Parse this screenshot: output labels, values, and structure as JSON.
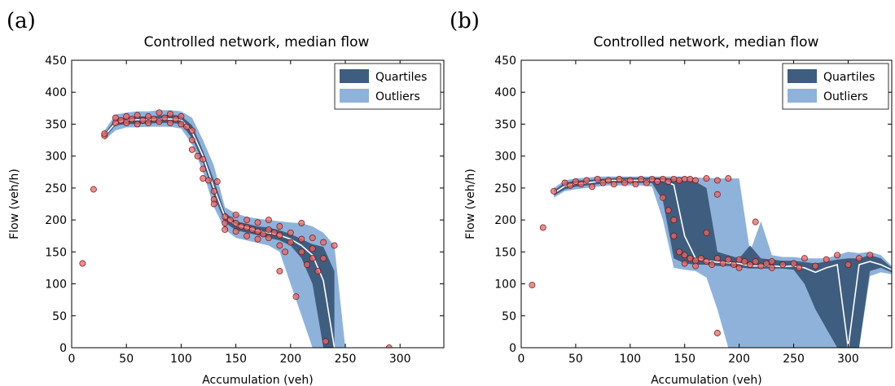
{
  "chart_data": [
    {
      "type": "scatter",
      "panel_label": "(a)",
      "title": "Controlled network, median flow",
      "xlabel": "Accumulation (veh)",
      "ylabel": "Flow (veh/h)",
      "xlim": [
        0,
        340
      ],
      "ylim": [
        0,
        450
      ],
      "xticks": [
        0,
        50,
        100,
        150,
        200,
        250,
        300
      ],
      "yticks": [
        0,
        50,
        100,
        150,
        200,
        250,
        300,
        350,
        400,
        450
      ],
      "legend": {
        "position": "top-right",
        "items": [
          "Quartiles",
          "Outliers"
        ]
      },
      "colors": {
        "quartiles": "#3f5d7f",
        "outliers": "#8fb2da",
        "median": "#ffffff",
        "points": "#e06a6a",
        "point_edge": "#7a1010"
      },
      "median": {
        "x": [
          10,
          20,
          30,
          40,
          50,
          60,
          70,
          80,
          90,
          100,
          110,
          120,
          130,
          140,
          150,
          160,
          170,
          180,
          190,
          200,
          210,
          220,
          230,
          240
        ],
        "y": [
          130,
          248,
          332,
          352,
          356,
          357,
          357,
          358,
          358,
          357,
          338,
          300,
          250,
          205,
          192,
          188,
          183,
          180,
          176,
          170,
          160,
          145,
          105,
          0
        ]
      },
      "quartiles": {
        "x": [
          30,
          40,
          50,
          60,
          70,
          80,
          90,
          100,
          110,
          120,
          130,
          140,
          150,
          160,
          170,
          180,
          190,
          200,
          210,
          220,
          230,
          240
        ],
        "lower": [
          328,
          348,
          350,
          350,
          351,
          352,
          352,
          350,
          328,
          290,
          238,
          196,
          184,
          180,
          176,
          172,
          168,
          160,
          140,
          100,
          0,
          0
        ],
        "upper": [
          335,
          358,
          360,
          362,
          362,
          363,
          365,
          363,
          348,
          308,
          262,
          212,
          198,
          194,
          190,
          188,
          184,
          178,
          170,
          162,
          158,
          120
        ]
      },
      "outliers": {
        "x": [
          30,
          40,
          50,
          60,
          70,
          80,
          90,
          100,
          110,
          120,
          130,
          140,
          150,
          160,
          170,
          180,
          190,
          200,
          210,
          220,
          230,
          240,
          250
        ],
        "lower": [
          325,
          340,
          345,
          345,
          346,
          346,
          346,
          343,
          318,
          275,
          220,
          185,
          172,
          168,
          164,
          160,
          150,
          100,
          50,
          0,
          0,
          0,
          0
        ],
        "upper": [
          340,
          365,
          368,
          370,
          370,
          372,
          372,
          370,
          360,
          325,
          285,
          220,
          210,
          205,
          202,
          200,
          198,
          196,
          195,
          190,
          180,
          160,
          0
        ]
      },
      "points": [
        {
          "x": 10,
          "y": 132
        },
        {
          "x": 20,
          "y": 248
        },
        {
          "x": 30,
          "y": 332
        },
        {
          "x": 30,
          "y": 335
        },
        {
          "x": 40,
          "y": 352
        },
        {
          "x": 40,
          "y": 360
        },
        {
          "x": 45,
          "y": 356
        },
        {
          "x": 50,
          "y": 352
        },
        {
          "x": 50,
          "y": 362
        },
        {
          "x": 55,
          "y": 358
        },
        {
          "x": 60,
          "y": 350
        },
        {
          "x": 60,
          "y": 364
        },
        {
          "x": 65,
          "y": 356
        },
        {
          "x": 70,
          "y": 352
        },
        {
          "x": 70,
          "y": 362
        },
        {
          "x": 75,
          "y": 358
        },
        {
          "x": 80,
          "y": 354
        },
        {
          "x": 80,
          "y": 368
        },
        {
          "x": 85,
          "y": 360
        },
        {
          "x": 90,
          "y": 352
        },
        {
          "x": 90,
          "y": 366
        },
        {
          "x": 95,
          "y": 358
        },
        {
          "x": 100,
          "y": 350
        },
        {
          "x": 100,
          "y": 362
        },
        {
          "x": 105,
          "y": 346
        },
        {
          "x": 110,
          "y": 340
        },
        {
          "x": 110,
          "y": 325
        },
        {
          "x": 110,
          "y": 310
        },
        {
          "x": 115,
          "y": 300
        },
        {
          "x": 120,
          "y": 295
        },
        {
          "x": 120,
          "y": 280
        },
        {
          "x": 120,
          "y": 265
        },
        {
          "x": 125,
          "y": 262
        },
        {
          "x": 130,
          "y": 245
        },
        {
          "x": 130,
          "y": 232
        },
        {
          "x": 130,
          "y": 225
        },
        {
          "x": 133,
          "y": 260
        },
        {
          "x": 140,
          "y": 205
        },
        {
          "x": 140,
          "y": 195
        },
        {
          "x": 140,
          "y": 185
        },
        {
          "x": 145,
          "y": 200
        },
        {
          "x": 150,
          "y": 208
        },
        {
          "x": 150,
          "y": 195
        },
        {
          "x": 150,
          "y": 182
        },
        {
          "x": 155,
          "y": 190
        },
        {
          "x": 160,
          "y": 200
        },
        {
          "x": 160,
          "y": 188
        },
        {
          "x": 160,
          "y": 175
        },
        {
          "x": 165,
          "y": 185
        },
        {
          "x": 170,
          "y": 196
        },
        {
          "x": 170,
          "y": 182
        },
        {
          "x": 170,
          "y": 170
        },
        {
          "x": 175,
          "y": 178
        },
        {
          "x": 180,
          "y": 200
        },
        {
          "x": 180,
          "y": 185
        },
        {
          "x": 180,
          "y": 172
        },
        {
          "x": 185,
          "y": 180
        },
        {
          "x": 190,
          "y": 190
        },
        {
          "x": 190,
          "y": 176
        },
        {
          "x": 190,
          "y": 160
        },
        {
          "x": 195,
          "y": 150
        },
        {
          "x": 190,
          "y": 120
        },
        {
          "x": 200,
          "y": 180
        },
        {
          "x": 200,
          "y": 165
        },
        {
          "x": 205,
          "y": 80
        },
        {
          "x": 210,
          "y": 195
        },
        {
          "x": 210,
          "y": 170
        },
        {
          "x": 210,
          "y": 150
        },
        {
          "x": 215,
          "y": 130
        },
        {
          "x": 220,
          "y": 172
        },
        {
          "x": 220,
          "y": 155
        },
        {
          "x": 220,
          "y": 140
        },
        {
          "x": 225,
          "y": 120
        },
        {
          "x": 230,
          "y": 165
        },
        {
          "x": 230,
          "y": 140
        },
        {
          "x": 232,
          "y": 10
        },
        {
          "x": 240,
          "y": 160
        },
        {
          "x": 290,
          "y": 0
        }
      ]
    },
    {
      "type": "scatter",
      "panel_label": "(b)",
      "title": "Controlled network, median flow",
      "xlabel": "Accumulation (veh)",
      "ylabel": "Flow (veh/h)",
      "xlim": [
        0,
        340
      ],
      "ylim": [
        0,
        450
      ],
      "xticks": [
        0,
        50,
        100,
        150,
        200,
        250,
        300
      ],
      "yticks": [
        0,
        50,
        100,
        150,
        200,
        250,
        300,
        350,
        400,
        450
      ],
      "legend": {
        "position": "top-right",
        "items": [
          "Quartiles",
          "Outliers"
        ]
      },
      "colors": {
        "quartiles": "#3f5d7f",
        "outliers": "#8fb2da",
        "median": "#ffffff",
        "points": "#e06a6a",
        "point_edge": "#7a1010"
      },
      "median": {
        "x": [
          10,
          20,
          30,
          40,
          50,
          60,
          70,
          80,
          90,
          100,
          110,
          120,
          130,
          140,
          150,
          160,
          170,
          180,
          190,
          200,
          210,
          220,
          230,
          240,
          250,
          260,
          270,
          280,
          290,
          300,
          310,
          320,
          330,
          340
        ],
        "y": [
          98,
          188,
          242,
          253,
          257,
          258,
          260,
          262,
          262,
          262,
          262,
          262,
          262,
          255,
          175,
          140,
          136,
          134,
          133,
          132,
          128,
          128,
          128,
          127,
          128,
          125,
          118,
          125,
          130,
          0,
          130,
          135,
          130,
          122
        ]
      },
      "quartiles": {
        "x": [
          30,
          40,
          50,
          60,
          70,
          80,
          90,
          100,
          110,
          120,
          130,
          140,
          150,
          160,
          170,
          180,
          190,
          200,
          210,
          220,
          230,
          240,
          250,
          260,
          270,
          280,
          290,
          300,
          310,
          320,
          330,
          340
        ],
        "lower": [
          238,
          248,
          252,
          254,
          256,
          258,
          258,
          258,
          258,
          258,
          230,
          140,
          132,
          130,
          130,
          128,
          128,
          126,
          124,
          124,
          124,
          124,
          122,
          100,
          60,
          30,
          0,
          0,
          0,
          120,
          125,
          118
        ],
        "upper": [
          246,
          258,
          262,
          262,
          264,
          265,
          266,
          266,
          266,
          266,
          266,
          264,
          262,
          260,
          250,
          150,
          145,
          140,
          160,
          140,
          138,
          136,
          136,
          134,
          132,
          135,
          138,
          140,
          140,
          145,
          140,
          125
        ]
      },
      "outliers": {
        "x": [
          30,
          40,
          50,
          60,
          70,
          80,
          90,
          100,
          110,
          120,
          130,
          140,
          150,
          160,
          170,
          180,
          190,
          200,
          210,
          220,
          230,
          240,
          250,
          260,
          270,
          280,
          290,
          300,
          310,
          320,
          330,
          340
        ],
        "lower": [
          235,
          245,
          248,
          250,
          252,
          254,
          254,
          254,
          254,
          252,
          200,
          125,
          122,
          120,
          110,
          60,
          0,
          0,
          0,
          0,
          0,
          0,
          0,
          0,
          0,
          0,
          0,
          0,
          0,
          112,
          118,
          115
        ],
        "upper": [
          250,
          262,
          265,
          266,
          268,
          268,
          268,
          268,
          268,
          268,
          268,
          268,
          268,
          266,
          266,
          265,
          265,
          265,
          150,
          198,
          145,
          142,
          142,
          140,
          140,
          140,
          145,
          150,
          148,
          150,
          145,
          128
        ]
      },
      "points": [
        {
          "x": 10,
          "y": 98
        },
        {
          "x": 20,
          "y": 188
        },
        {
          "x": 30,
          "y": 245
        },
        {
          "x": 40,
          "y": 258
        },
        {
          "x": 45,
          "y": 254
        },
        {
          "x": 50,
          "y": 260
        },
        {
          "x": 55,
          "y": 256
        },
        {
          "x": 60,
          "y": 262
        },
        {
          "x": 65,
          "y": 252
        },
        {
          "x": 70,
          "y": 264
        },
        {
          "x": 75,
          "y": 258
        },
        {
          "x": 80,
          "y": 262
        },
        {
          "x": 85,
          "y": 256
        },
        {
          "x": 90,
          "y": 264
        },
        {
          "x": 95,
          "y": 258
        },
        {
          "x": 100,
          "y": 262
        },
        {
          "x": 105,
          "y": 256
        },
        {
          "x": 110,
          "y": 264
        },
        {
          "x": 115,
          "y": 258
        },
        {
          "x": 120,
          "y": 264
        },
        {
          "x": 125,
          "y": 260
        },
        {
          "x": 130,
          "y": 264
        },
        {
          "x": 130,
          "y": 235
        },
        {
          "x": 135,
          "y": 260
        },
        {
          "x": 135,
          "y": 215
        },
        {
          "x": 140,
          "y": 264
        },
        {
          "x": 140,
          "y": 200
        },
        {
          "x": 140,
          "y": 175
        },
        {
          "x": 145,
          "y": 262
        },
        {
          "x": 145,
          "y": 150
        },
        {
          "x": 150,
          "y": 264
        },
        {
          "x": 150,
          "y": 145
        },
        {
          "x": 150,
          "y": 132
        },
        {
          "x": 155,
          "y": 264
        },
        {
          "x": 155,
          "y": 140
        },
        {
          "x": 160,
          "y": 262
        },
        {
          "x": 160,
          "y": 136
        },
        {
          "x": 160,
          "y": 128
        },
        {
          "x": 165,
          "y": 140
        },
        {
          "x": 170,
          "y": 265
        },
        {
          "x": 170,
          "y": 180
        },
        {
          "x": 170,
          "y": 135
        },
        {
          "x": 175,
          "y": 130
        },
        {
          "x": 180,
          "y": 262
        },
        {
          "x": 180,
          "y": 240
        },
        {
          "x": 180,
          "y": 140
        },
        {
          "x": 180,
          "y": 23
        },
        {
          "x": 185,
          "y": 132
        },
        {
          "x": 190,
          "y": 265
        },
        {
          "x": 190,
          "y": 138
        },
        {
          "x": 195,
          "y": 130
        },
        {
          "x": 200,
          "y": 138
        },
        {
          "x": 200,
          "y": 125
        },
        {
          "x": 205,
          "y": 135
        },
        {
          "x": 210,
          "y": 130
        },
        {
          "x": 215,
          "y": 197
        },
        {
          "x": 215,
          "y": 135
        },
        {
          "x": 220,
          "y": 128
        },
        {
          "x": 225,
          "y": 132
        },
        {
          "x": 230,
          "y": 135
        },
        {
          "x": 230,
          "y": 125
        },
        {
          "x": 240,
          "y": 130
        },
        {
          "x": 250,
          "y": 132
        },
        {
          "x": 255,
          "y": 125
        },
        {
          "x": 260,
          "y": 140
        },
        {
          "x": 270,
          "y": 128
        },
        {
          "x": 280,
          "y": 138
        },
        {
          "x": 290,
          "y": 145
        },
        {
          "x": 300,
          "y": 130
        },
        {
          "x": 310,
          "y": 140
        },
        {
          "x": 320,
          "y": 145
        }
      ]
    }
  ]
}
